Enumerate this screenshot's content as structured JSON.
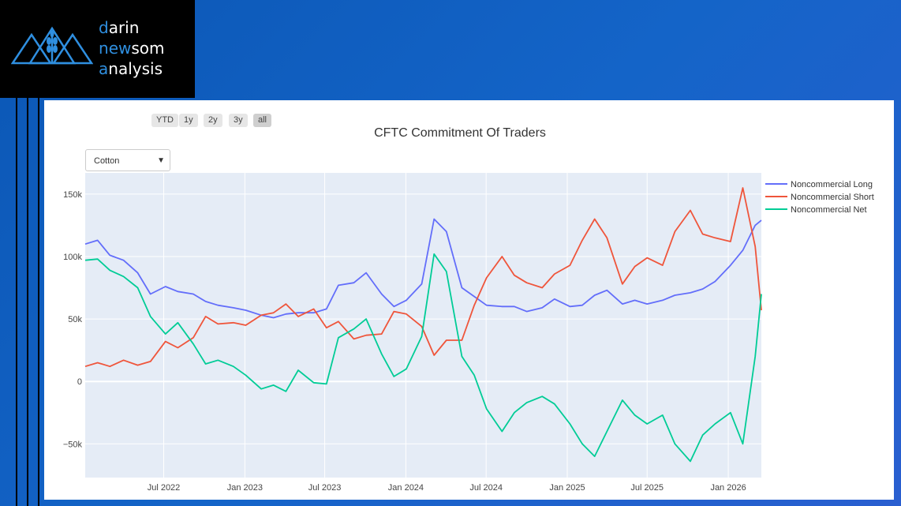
{
  "logo": {
    "line1": {
      "accent": "d",
      "rest": "arin"
    },
    "line2": {
      "first": "n",
      "accent1": "e",
      "mid": "",
      "accent2": "w",
      "rest": "som"
    },
    "line3": {
      "accent": "a",
      "rest": "nalysis"
    },
    "icon": "wheat-triangles-logo-icon",
    "accent_color": "#2f8fe0"
  },
  "range_buttons": [
    {
      "label": "YTD",
      "active": false
    },
    {
      "label": "1y",
      "active": false
    },
    {
      "label": "2y",
      "active": false
    },
    {
      "label": "3y",
      "active": false
    },
    {
      "label": "all",
      "active": true
    }
  ],
  "dropdown": {
    "selected": "Cotton"
  },
  "chart_data": {
    "type": "line",
    "title": "CFTC Commitment Of Traders",
    "xlabel": "",
    "ylabel": "",
    "x_ticks": [
      "Jul 2022",
      "Jan 2023",
      "Jul 2023",
      "Jan 2024",
      "Jul 2024",
      "Jan 2025",
      "Jul 2025",
      "Jan 2026"
    ],
    "y_ticks": [
      "150k",
      "100k",
      "50k",
      "0",
      "−50k"
    ],
    "ylim": [
      -77000,
      167000
    ],
    "x_range": [
      "2022-01-04",
      "2026-03-17"
    ],
    "grid": true,
    "legend_position": "right",
    "series": [
      {
        "name": "Noncommercial Long",
        "color": "#636efa",
        "points": [
          [
            "2022-01-04",
            110000
          ],
          [
            "2022-02-01",
            113000
          ],
          [
            "2022-03-01",
            101000
          ],
          [
            "2022-04-01",
            97000
          ],
          [
            "2022-05-03",
            87000
          ],
          [
            "2022-06-01",
            70000
          ],
          [
            "2022-07-05",
            76000
          ],
          [
            "2022-08-02",
            72000
          ],
          [
            "2022-09-06",
            70000
          ],
          [
            "2022-10-04",
            64000
          ],
          [
            "2022-11-01",
            61000
          ],
          [
            "2022-12-06",
            59000
          ],
          [
            "2023-01-03",
            57000
          ],
          [
            "2023-02-07",
            53000
          ],
          [
            "2023-03-07",
            51000
          ],
          [
            "2023-04-04",
            54000
          ],
          [
            "2023-05-02",
            55000
          ],
          [
            "2023-06-06",
            55000
          ],
          [
            "2023-07-05",
            58000
          ],
          [
            "2023-08-01",
            77000
          ],
          [
            "2023-09-05",
            79000
          ],
          [
            "2023-10-03",
            87000
          ],
          [
            "2023-11-07",
            70000
          ],
          [
            "2023-12-05",
            60000
          ],
          [
            "2024-01-02",
            65000
          ],
          [
            "2024-02-06",
            78000
          ],
          [
            "2024-03-05",
            130000
          ],
          [
            "2024-04-02",
            120000
          ],
          [
            "2024-05-07",
            75000
          ],
          [
            "2024-06-04",
            68000
          ],
          [
            "2024-07-02",
            61000
          ],
          [
            "2024-08-06",
            60000
          ],
          [
            "2024-09-03",
            60000
          ],
          [
            "2024-10-01",
            56000
          ],
          [
            "2024-11-05",
            59000
          ],
          [
            "2024-12-03",
            66000
          ],
          [
            "2025-01-07",
            60000
          ],
          [
            "2025-02-04",
            61000
          ],
          [
            "2025-03-04",
            69000
          ],
          [
            "2025-04-01",
            73000
          ],
          [
            "2025-05-06",
            62000
          ],
          [
            "2025-06-03",
            65000
          ],
          [
            "2025-07-01",
            62000
          ],
          [
            "2025-08-05",
            65000
          ],
          [
            "2025-09-02",
            69000
          ],
          [
            "2025-10-07",
            71000
          ],
          [
            "2025-11-04",
            74000
          ],
          [
            "2025-12-02",
            80000
          ],
          [
            "2026-01-06",
            93000
          ],
          [
            "2026-02-03",
            105000
          ],
          [
            "2026-03-03",
            125000
          ],
          [
            "2026-03-17",
            129000
          ]
        ]
      },
      {
        "name": "Noncommercial Short",
        "color": "#ef553b",
        "points": [
          [
            "2022-01-04",
            12000
          ],
          [
            "2022-02-01",
            15000
          ],
          [
            "2022-03-01",
            12000
          ],
          [
            "2022-04-01",
            17000
          ],
          [
            "2022-05-03",
            13000
          ],
          [
            "2022-06-01",
            16000
          ],
          [
            "2022-07-05",
            32000
          ],
          [
            "2022-08-02",
            27000
          ],
          [
            "2022-09-06",
            35000
          ],
          [
            "2022-10-04",
            52000
          ],
          [
            "2022-11-01",
            46000
          ],
          [
            "2022-12-06",
            47000
          ],
          [
            "2023-01-03",
            45000
          ],
          [
            "2023-02-07",
            53000
          ],
          [
            "2023-03-07",
            55000
          ],
          [
            "2023-04-04",
            62000
          ],
          [
            "2023-05-02",
            52000
          ],
          [
            "2023-06-06",
            58000
          ],
          [
            "2023-07-05",
            43000
          ],
          [
            "2023-08-01",
            48000
          ],
          [
            "2023-09-05",
            34000
          ],
          [
            "2023-10-03",
            37000
          ],
          [
            "2023-11-07",
            38000
          ],
          [
            "2023-12-05",
            56000
          ],
          [
            "2024-01-02",
            54000
          ],
          [
            "2024-02-06",
            44000
          ],
          [
            "2024-03-05",
            21000
          ],
          [
            "2024-04-02",
            33000
          ],
          [
            "2024-05-07",
            33000
          ],
          [
            "2024-06-04",
            61000
          ],
          [
            "2024-07-02",
            83000
          ],
          [
            "2024-08-06",
            100000
          ],
          [
            "2024-09-03",
            85000
          ],
          [
            "2024-10-01",
            79000
          ],
          [
            "2024-11-05",
            75000
          ],
          [
            "2024-12-03",
            86000
          ],
          [
            "2025-01-07",
            93000
          ],
          [
            "2025-02-04",
            113000
          ],
          [
            "2025-03-04",
            130000
          ],
          [
            "2025-04-01",
            115000
          ],
          [
            "2025-05-06",
            78000
          ],
          [
            "2025-06-03",
            92000
          ],
          [
            "2025-07-01",
            99000
          ],
          [
            "2025-08-05",
            93000
          ],
          [
            "2025-09-02",
            120000
          ],
          [
            "2025-10-07",
            137000
          ],
          [
            "2025-11-04",
            118000
          ],
          [
            "2025-12-02",
            115000
          ],
          [
            "2026-01-06",
            112000
          ],
          [
            "2026-02-03",
            155000
          ],
          [
            "2026-03-03",
            108000
          ],
          [
            "2026-03-17",
            57000
          ]
        ]
      },
      {
        "name": "Noncommercial Net",
        "color": "#00cc96",
        "points": [
          [
            "2022-01-04",
            97000
          ],
          [
            "2022-02-01",
            98000
          ],
          [
            "2022-03-01",
            89000
          ],
          [
            "2022-04-01",
            84000
          ],
          [
            "2022-05-03",
            75000
          ],
          [
            "2022-06-01",
            52000
          ],
          [
            "2022-07-05",
            38000
          ],
          [
            "2022-08-02",
            47000
          ],
          [
            "2022-09-06",
            30000
          ],
          [
            "2022-10-04",
            14000
          ],
          [
            "2022-11-01",
            17000
          ],
          [
            "2022-12-06",
            12000
          ],
          [
            "2023-01-03",
            5000
          ],
          [
            "2023-02-07",
            -6000
          ],
          [
            "2023-03-07",
            -3000
          ],
          [
            "2023-04-04",
            -8000
          ],
          [
            "2023-05-02",
            9000
          ],
          [
            "2023-06-06",
            -1000
          ],
          [
            "2023-07-05",
            -2000
          ],
          [
            "2023-08-01",
            35000
          ],
          [
            "2023-09-05",
            42000
          ],
          [
            "2023-10-03",
            50000
          ],
          [
            "2023-11-07",
            22000
          ],
          [
            "2023-12-05",
            4000
          ],
          [
            "2024-01-02",
            10000
          ],
          [
            "2024-02-06",
            36000
          ],
          [
            "2024-03-05",
            102000
          ],
          [
            "2024-04-02",
            88000
          ],
          [
            "2024-05-07",
            20000
          ],
          [
            "2024-06-04",
            5000
          ],
          [
            "2024-07-02",
            -22000
          ],
          [
            "2024-08-06",
            -40000
          ],
          [
            "2024-09-03",
            -25000
          ],
          [
            "2024-10-01",
            -17000
          ],
          [
            "2024-11-05",
            -12000
          ],
          [
            "2024-12-03",
            -18000
          ],
          [
            "2025-01-07",
            -34000
          ],
          [
            "2025-02-04",
            -50000
          ],
          [
            "2025-03-04",
            -60000
          ],
          [
            "2025-04-01",
            -40000
          ],
          [
            "2025-05-06",
            -15000
          ],
          [
            "2025-06-03",
            -27000
          ],
          [
            "2025-07-01",
            -34000
          ],
          [
            "2025-08-05",
            -27000
          ],
          [
            "2025-09-02",
            -50000
          ],
          [
            "2025-10-07",
            -64000
          ],
          [
            "2025-11-04",
            -43000
          ],
          [
            "2025-12-02",
            -34000
          ],
          [
            "2026-01-06",
            -25000
          ],
          [
            "2026-02-03",
            -50000
          ],
          [
            "2026-03-03",
            20000
          ],
          [
            "2026-03-17",
            70000
          ]
        ]
      }
    ]
  }
}
